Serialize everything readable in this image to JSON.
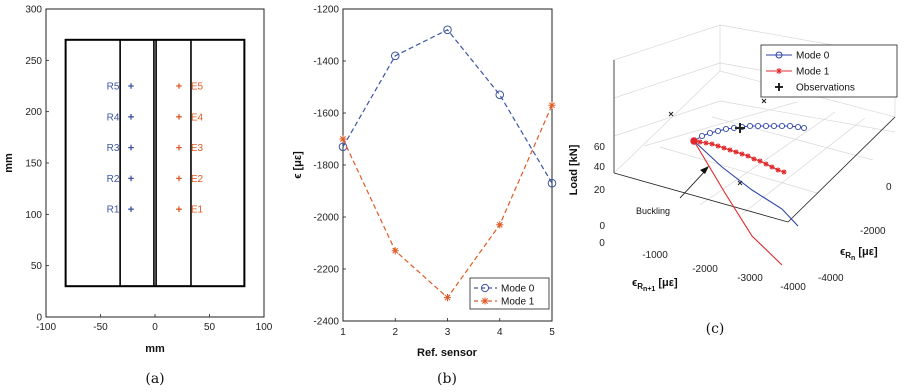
{
  "colors": {
    "blue": "#3d55a4",
    "orange": "#e05a25",
    "blue3d": "#2f45a8",
    "red3d": "#e0282b",
    "black": "#000000"
  },
  "captions": [
    "(a)",
    "(b)",
    "(c)"
  ],
  "chart_data": [
    {
      "type": "scatter",
      "xlabel": "mm",
      "ylabel": "mm",
      "xlim": [
        -100,
        100
      ],
      "ylim": [
        0,
        300
      ],
      "xticks": [
        "-100",
        "-50",
        "0",
        "50",
        "100"
      ],
      "yticks": [
        "0",
        "50",
        "100",
        "150",
        "200",
        "250",
        "300"
      ],
      "outline": {
        "x": [
          -82,
          82
        ],
        "y": [
          30,
          270
        ]
      },
      "stiffeners": [
        [
          -32,
          -1
        ],
        [
          1,
          33
        ]
      ],
      "series": [
        {
          "labels": [
            "R5",
            "R4",
            "R3",
            "R2",
            "R1"
          ],
          "x": 22,
          "y": [
            225,
            195,
            165,
            135,
            105
          ],
          "color": "blue"
        },
        {
          "labels": [
            "E5",
            "E4",
            "E3",
            "E2",
            "E1"
          ],
          "x": -22,
          "y": [
            225,
            195,
            165,
            135,
            105
          ],
          "color": "orange"
        }
      ]
    },
    {
      "type": "line",
      "xlabel": "Ref. sensor",
      "ylabel": "ϵ [με]",
      "xlim": [
        1,
        5
      ],
      "ylim": [
        -2400,
        -1200
      ],
      "xticks": [
        "1",
        "2",
        "3",
        "4",
        "5"
      ],
      "yticks": [
        "-1200",
        "-1400",
        "-1600",
        "-1800",
        "-2000",
        "-2200",
        "-2400"
      ],
      "categories": [
        1,
        2,
        3,
        4,
        5
      ],
      "series": [
        {
          "name": "Mode 0",
          "values": [
            -1730,
            -1380,
            -1280,
            -1530,
            -1870
          ]
        },
        {
          "name": "Mode 1",
          "values": [
            -1700,
            -2130,
            -2310,
            -2030,
            -1570
          ]
        }
      ],
      "legend": "bottom-right"
    },
    {
      "type": "line",
      "subtype": "3d",
      "xlabel": "ϵRn+1 [με]",
      "ylabel": "ϵRn [με]",
      "zlabel": "Load [kN]",
      "xticks": [
        "0",
        "-1000",
        "-2000",
        "-3000",
        "-4000"
      ],
      "yticks": [
        "0",
        "-2000",
        "-4000"
      ],
      "zticks": [
        "0",
        "20",
        "40",
        "60"
      ],
      "legend": [
        "Mode 0",
        "Mode 1",
        "Observations"
      ],
      "annotation": "Buckling"
    }
  ]
}
